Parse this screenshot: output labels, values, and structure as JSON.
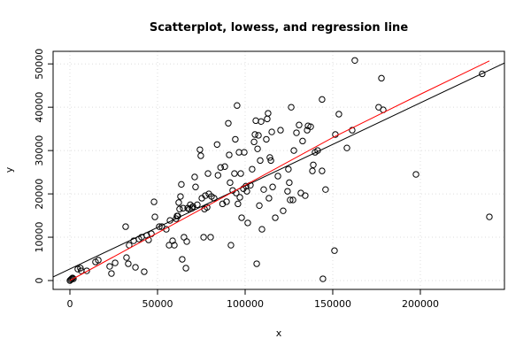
{
  "chart_data": {
    "type": "scatter",
    "title": "Scatterplot, lowess, and regression line",
    "x_label": "x",
    "y_label": "y",
    "xlim": [
      -9600,
      248000
    ],
    "ylim": [
      -2040,
      52900
    ],
    "xticks": [
      0,
      50000,
      100000,
      150000,
      200000
    ],
    "yticks": [
      0,
      10000,
      20000,
      30000,
      40000,
      50000
    ],
    "grid": true,
    "point_color": "#000000",
    "x": [
      0,
      500,
      1000,
      1500,
      2000,
      4500,
      6000,
      6500,
      9600,
      14600,
      16200,
      22700,
      23700,
      25800,
      31800,
      32300,
      33300,
      33800,
      36400,
      37400,
      39400,
      40900,
      42400,
      43900,
      44900,
      46500,
      48000,
      48500,
      51000,
      52500,
      55000,
      56600,
      57100,
      58600,
      59600,
      60600,
      61100,
      61600,
      62100,
      62600,
      63100,
      63600,
      64100,
      64600,
      65100,
      66200,
      66700,
      67200,
      68200,
      68700,
      69700,
      70200,
      71200,
      71700,
      72700,
      74200,
      74700,
      75300,
      76300,
      76800,
      77300,
      78300,
      78800,
      79300,
      80300,
      80800,
      82300,
      84000,
      84500,
      86000,
      87100,
      88400,
      89400,
      90400,
      90900,
      91400,
      91900,
      92900,
      93900,
      94400,
      94900,
      95400,
      95900,
      96500,
      97000,
      97500,
      98000,
      99000,
      99500,
      100500,
      101000,
      101500,
      103000,
      104000,
      105100,
      105600,
      106100,
      106600,
      107100,
      107600,
      108100,
      108600,
      109100,
      109600,
      110600,
      112100,
      112600,
      113100,
      113600,
      114100,
      114700,
      115200,
      115700,
      117200,
      118700,
      120200,
      121700,
      124200,
      124700,
      125200,
      125700,
      126300,
      127300,
      127800,
      129300,
      130800,
      131800,
      132800,
      134300,
      135400,
      135900,
      137400,
      138400,
      138900,
      139900,
      141400,
      143900,
      143900,
      144400,
      145900,
      151000,
      151500,
      153500,
      158100,
      161100,
      162600,
      176200,
      177800,
      178800,
      197500,
      235300,
      239400
    ],
    "y": [
      0,
      200,
      400,
      600,
      400,
      2650,
      2860,
      2240,
      2240,
      4300,
      4700,
      3260,
      1630,
      4080,
      12440,
      5300,
      3880,
      8160,
      9180,
      3060,
      9590,
      10000,
      2040,
      10400,
      9380,
      10800,
      18160,
      14690,
      12440,
      12440,
      11830,
      8160,
      13870,
      9180,
      8160,
      14280,
      14900,
      14900,
      18000,
      16500,
      19400,
      22200,
      4900,
      16700,
      10000,
      2860,
      9000,
      16700,
      16500,
      17500,
      16700,
      17100,
      23900,
      21600,
      17500,
      30200,
      28800,
      19000,
      10000,
      16500,
      19600,
      16900,
      24700,
      20000,
      10000,
      19400,
      19000,
      31400,
      24300,
      26100,
      17700,
      26300,
      18200,
      36300,
      29000,
      22600,
      8160,
      20800,
      24700,
      32600,
      20200,
      40400,
      17700,
      29600,
      19200,
      24700,
      14500,
      21200,
      29600,
      21800,
      20600,
      13300,
      22000,
      25700,
      32000,
      33700,
      36900,
      3880,
      30400,
      33500,
      17300,
      27700,
      36700,
      11830,
      21000,
      32600,
      37300,
      38600,
      19000,
      28400,
      27700,
      34300,
      21600,
      14500,
      24100,
      34700,
      16100,
      20600,
      25700,
      22600,
      18600,
      40000,
      18600,
      30000,
      34100,
      35900,
      20200,
      32200,
      19600,
      34700,
      35700,
      35500,
      25300,
      26700,
      29600,
      30000,
      41800,
      25300,
      400,
      21000,
      6900,
      33700,
      38400,
      30600,
      34700,
      50800,
      40000,
      46700,
      39400,
      24500,
      47700,
      14700
    ],
    "lowess": {
      "color": "#ff0000",
      "x": [
        0,
        50000,
        100000,
        150000,
        200000,
        239400
      ],
      "y": [
        0,
        11000,
        22000,
        33000,
        43000,
        50700
      ]
    },
    "regression": {
      "color": "#000000",
      "x": [
        -9600,
        248000
      ],
      "y": [
        830,
        50210
      ]
    }
  }
}
